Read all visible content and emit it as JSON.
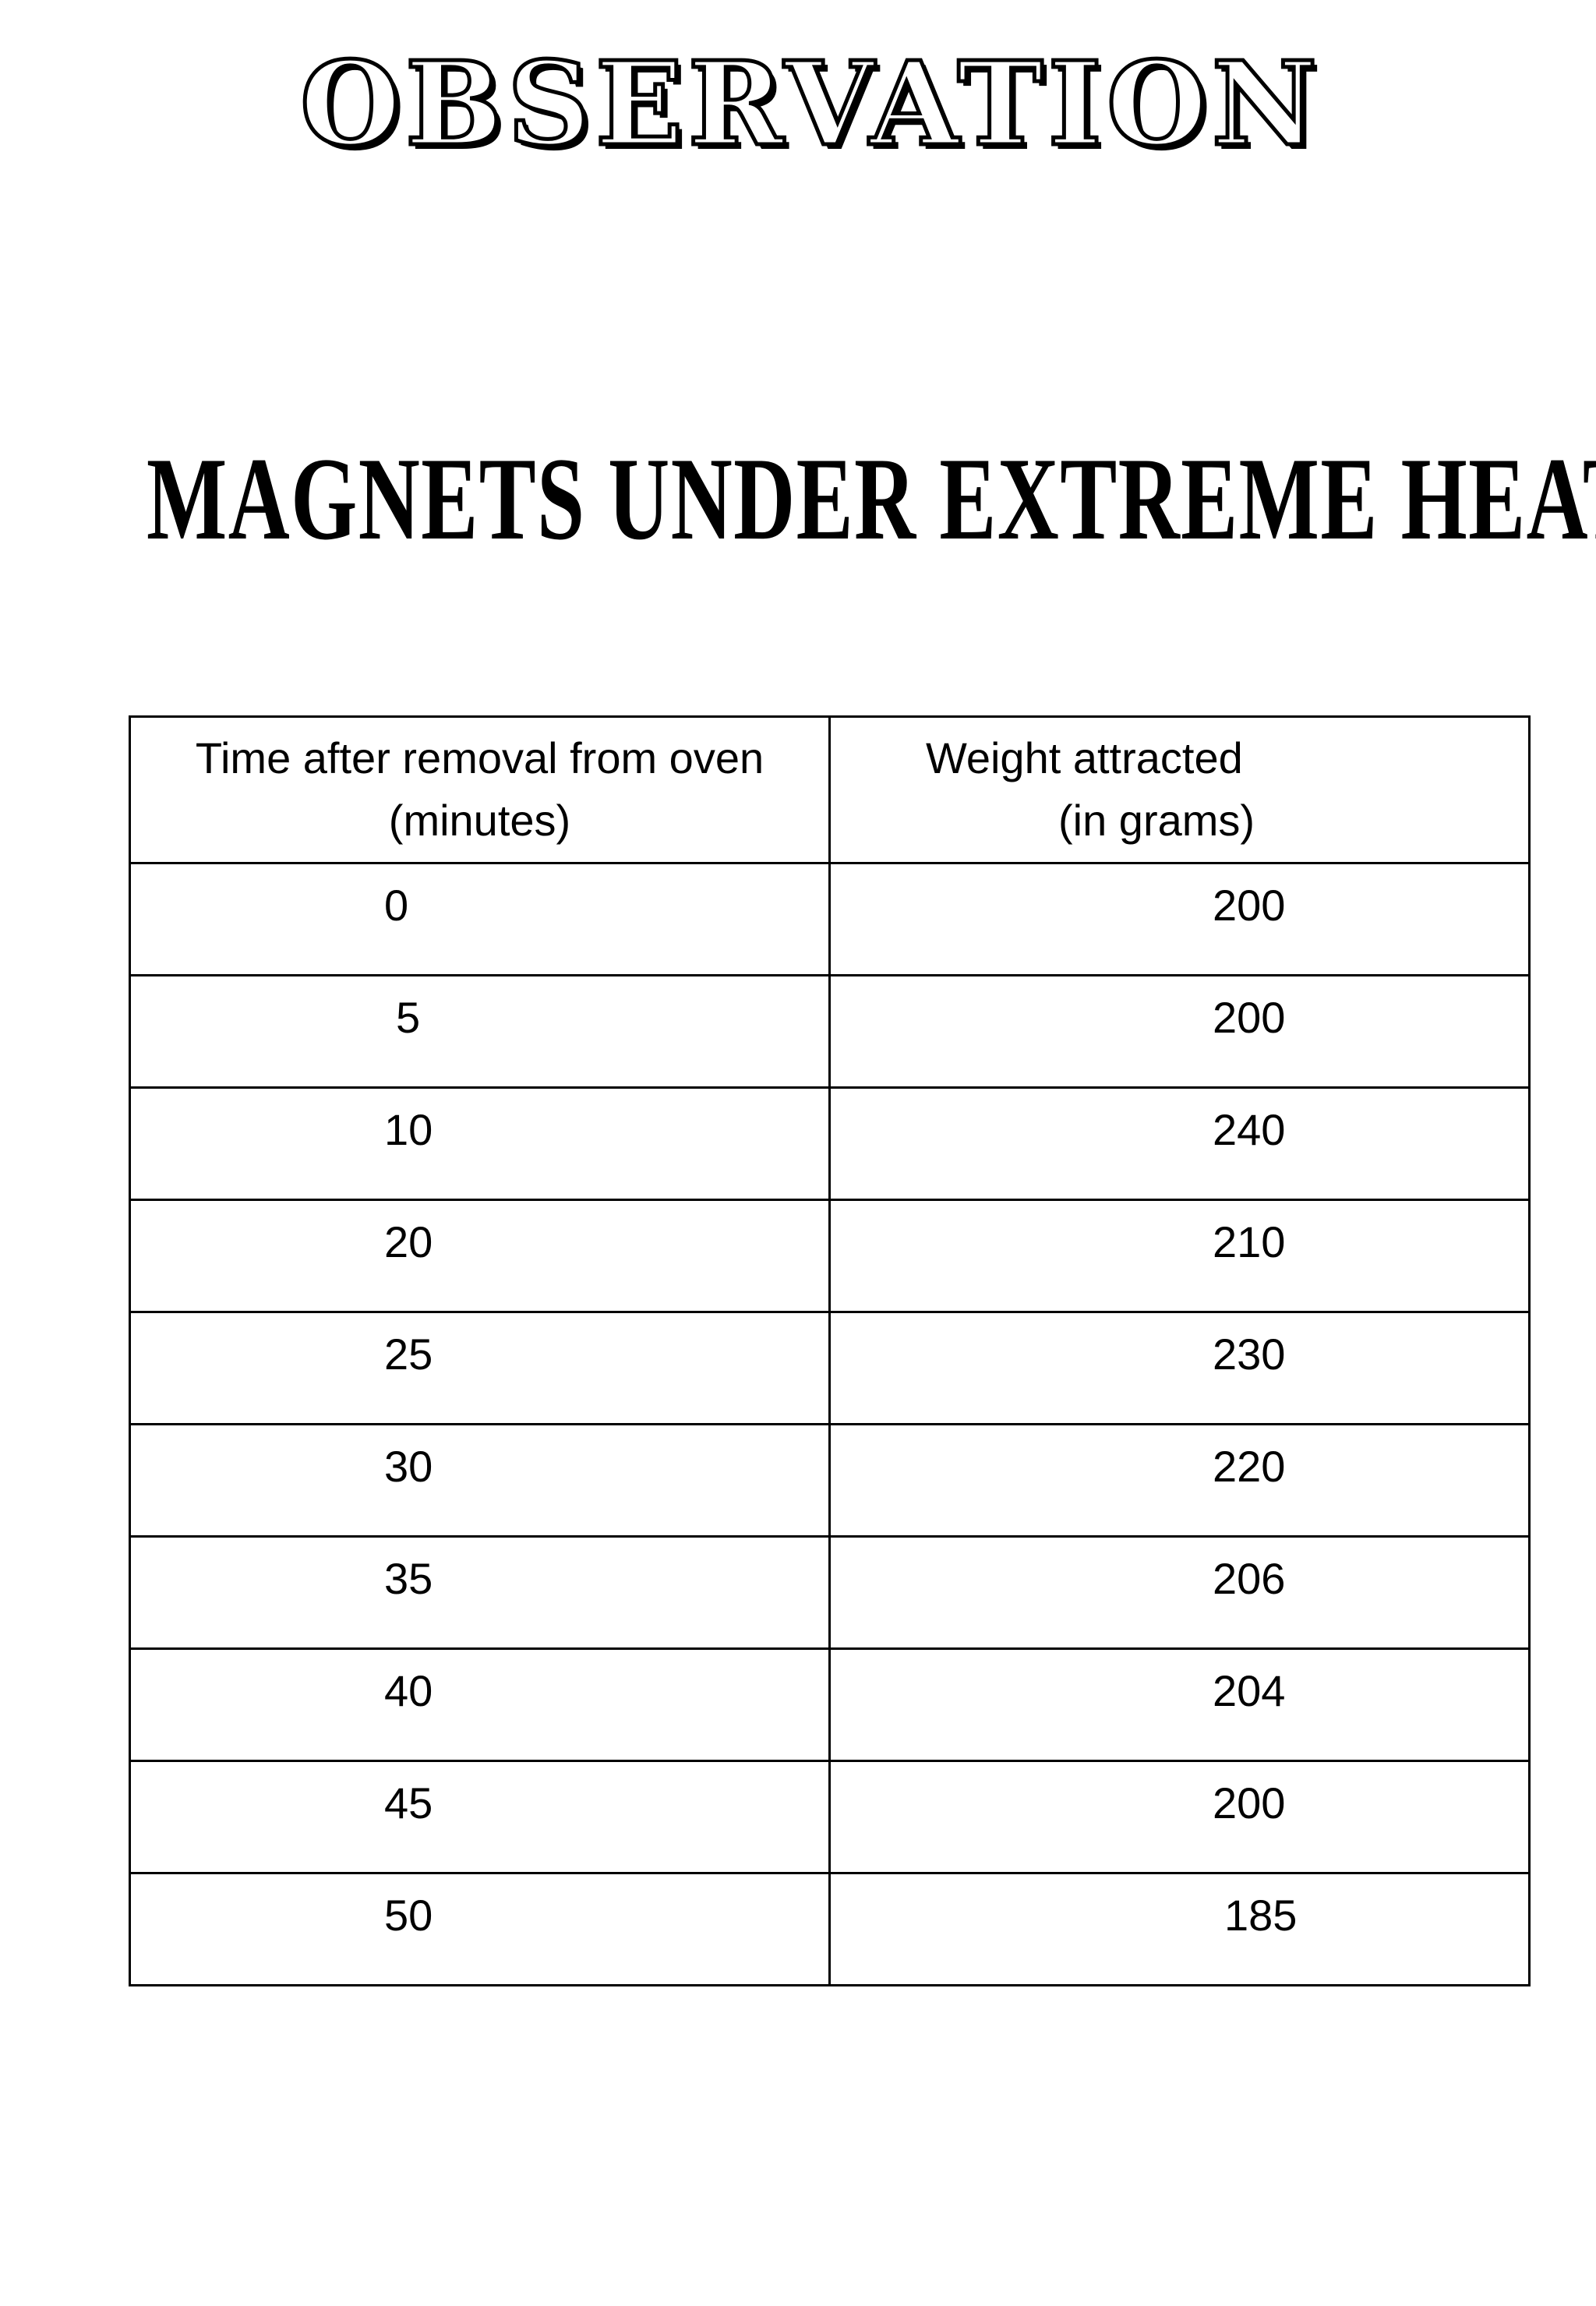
{
  "header": {
    "title": "OBSERVATION"
  },
  "heading": {
    "text": "MAGNETS UNDER EXTREME HEAT"
  },
  "table": {
    "headers": [
      {
        "line1": "Time after removal from oven",
        "line2": "(minutes)"
      },
      {
        "line1": "Weight attracted",
        "line2": "(in grams)"
      }
    ],
    "rows": [
      {
        "time": "0",
        "weight": "200"
      },
      {
        "time": "5",
        "weight": "200"
      },
      {
        "time": "10",
        "weight": "240"
      },
      {
        "time": "20",
        "weight": "210"
      },
      {
        "time": "25",
        "weight": "230"
      },
      {
        "time": "30",
        "weight": "220"
      },
      {
        "time": "35",
        "weight": "206"
      },
      {
        "time": "40",
        "weight": "204"
      },
      {
        "time": "45",
        "weight": "200"
      },
      {
        "time": "50",
        "weight": "185"
      }
    ]
  }
}
